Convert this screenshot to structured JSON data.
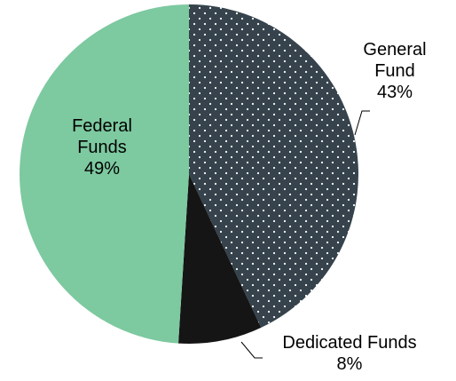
{
  "chart_data": {
    "type": "pie",
    "title": "",
    "start_angle_deg": 0,
    "direction": "clockwise",
    "slices": [
      {
        "name": "General Fund",
        "label_lines": [
          "General",
          "Fund"
        ],
        "value": 43,
        "value_label": "43%",
        "color": "#36434c",
        "pattern": "white-dots"
      },
      {
        "name": "Dedicated Funds",
        "label_lines": [
          "Dedicated Funds"
        ],
        "value": 8,
        "value_label": "8%",
        "color": "#151515",
        "pattern": "solid"
      },
      {
        "name": "Federal Funds",
        "label_lines": [
          "Federal",
          "Funds"
        ],
        "value": 49,
        "value_label": "49%",
        "color": "#7dc9a0",
        "pattern": "solid"
      }
    ]
  }
}
